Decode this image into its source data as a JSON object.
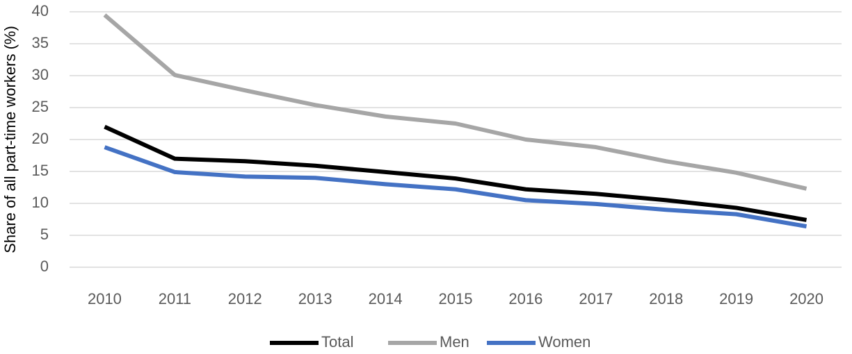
{
  "chart_data": {
    "type": "line",
    "y_label": "Share of all part-time workers (%)",
    "categories": [
      "2010",
      "2011",
      "2012",
      "2013",
      "2014",
      "2015",
      "2016",
      "2017",
      "2018",
      "2019",
      "2020"
    ],
    "series": [
      {
        "name": "Total",
        "color": "#000000",
        "values": [
          22.0,
          17.0,
          16.6,
          15.9,
          14.9,
          13.9,
          12.2,
          11.5,
          10.5,
          9.3,
          7.4
        ]
      },
      {
        "name": "Men",
        "color": "#a6a6a6",
        "values": [
          39.5,
          30.1,
          27.7,
          25.4,
          23.6,
          22.5,
          20.0,
          18.8,
          16.6,
          14.8,
          12.3
        ]
      },
      {
        "name": "Women",
        "color": "#4472c4",
        "values": [
          18.8,
          14.9,
          14.2,
          14.0,
          13.0,
          12.2,
          10.5,
          9.9,
          9.0,
          8.3,
          6.4
        ]
      }
    ],
    "ylim": [
      0,
      40
    ],
    "yticks": [
      0,
      5,
      10,
      15,
      20,
      25,
      30,
      35,
      40
    ],
    "grid": true,
    "legend": "bottom"
  }
}
